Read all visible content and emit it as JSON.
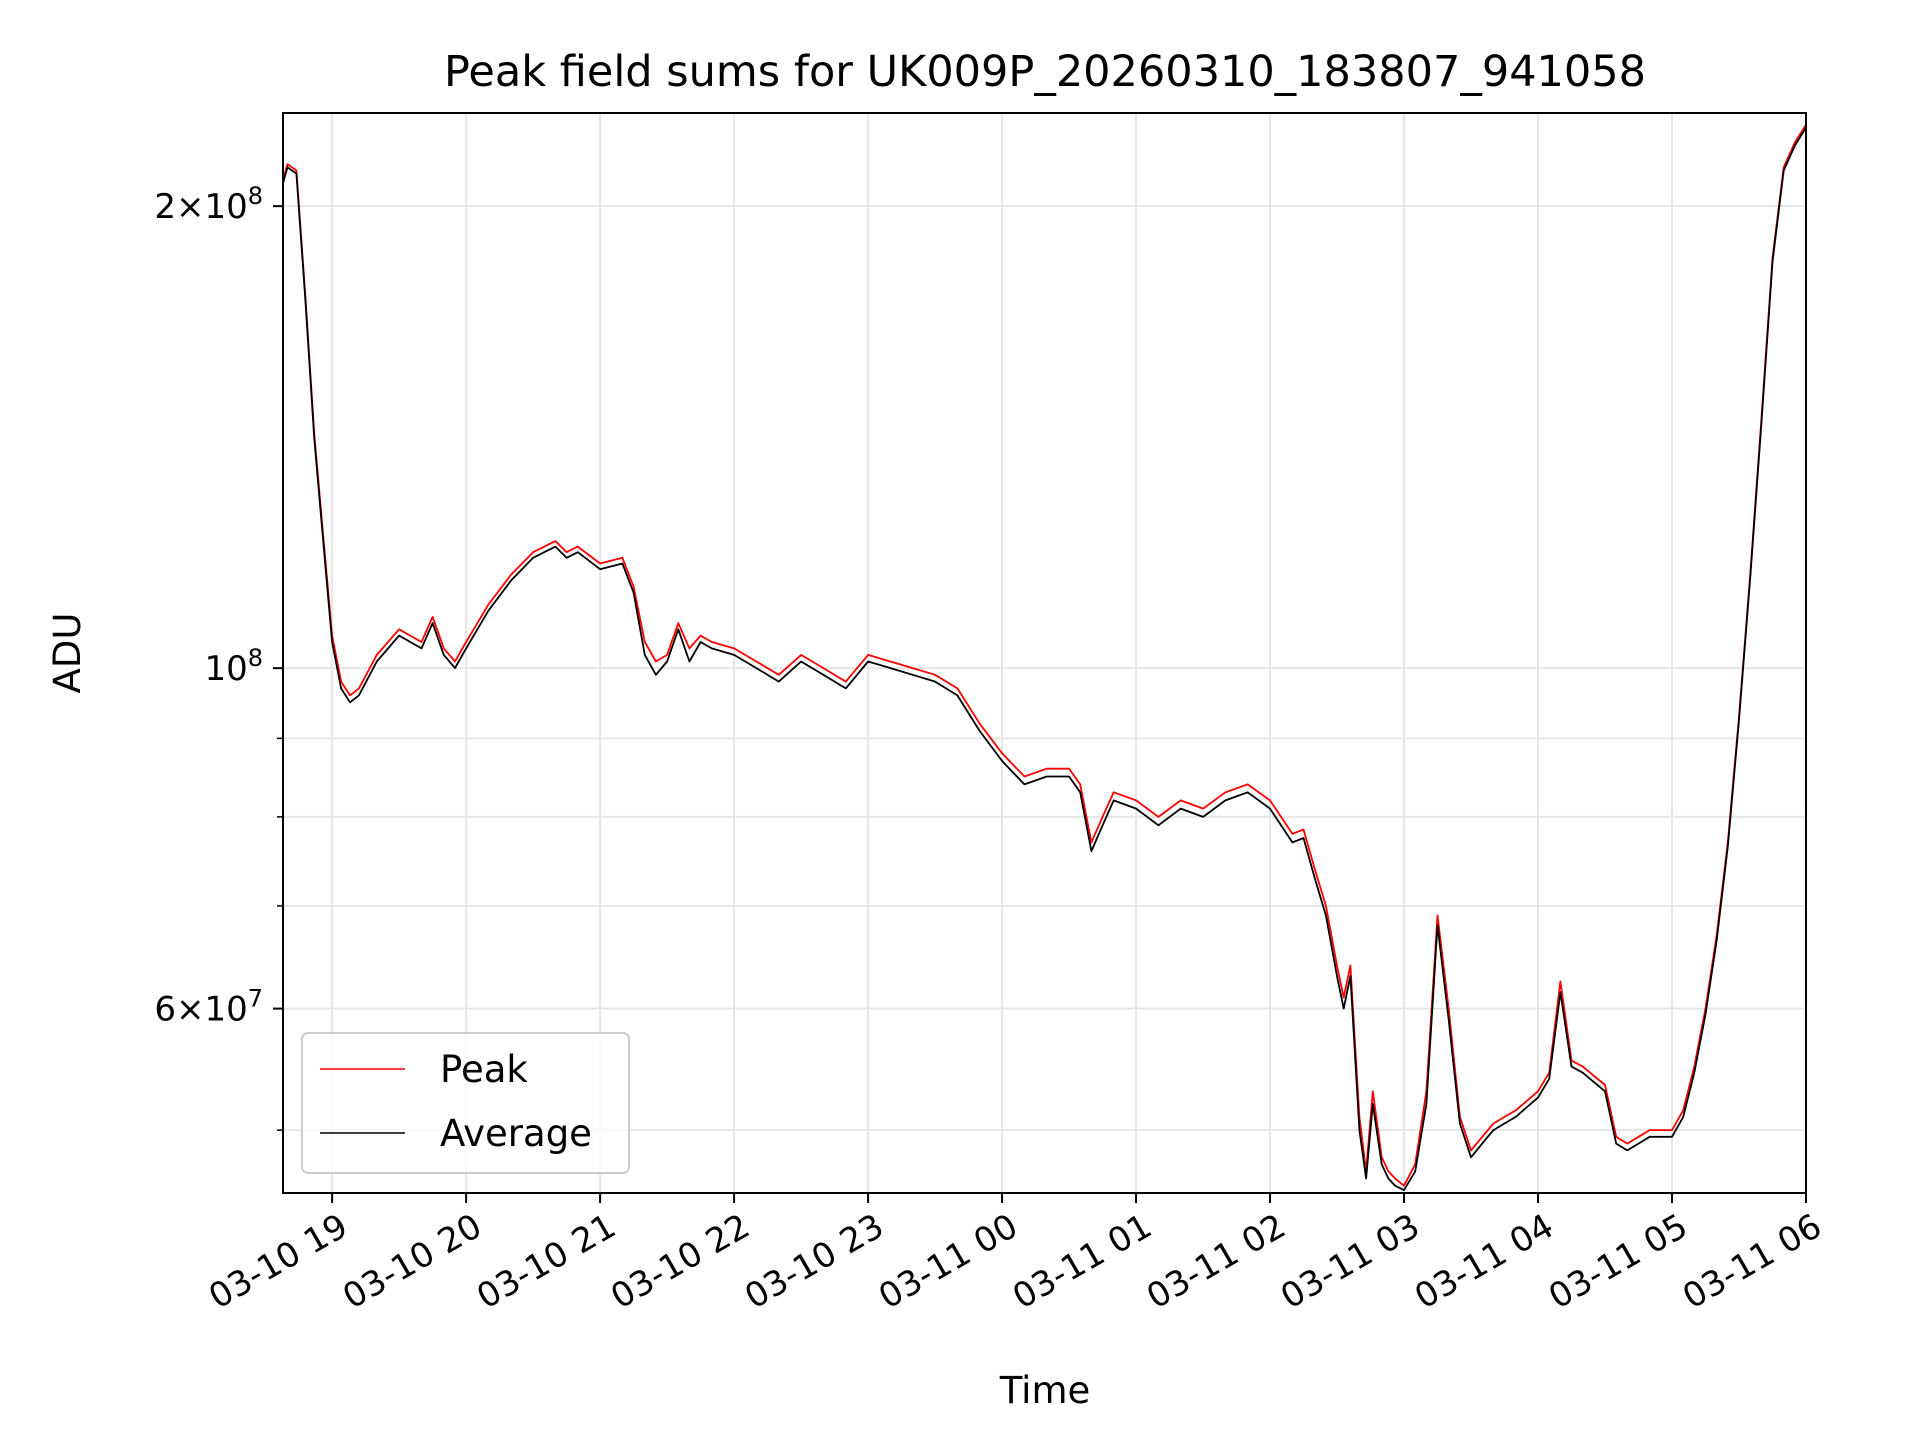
{
  "chart_data": {
    "type": "line",
    "title": "Peak field sums for UK009P_20260310_183807_941058",
    "xlabel": "Time",
    "ylabel": "ADU",
    "yscale": "log",
    "ylim": [
      45500000,
      230000000
    ],
    "xlim": [
      "2026-03-10 18:38",
      "2026-03-11 06:00"
    ],
    "grid": true,
    "legend_position": "lower-left",
    "x_tick_labels": [
      "03-10 19",
      "03-10 20",
      "03-10 21",
      "03-10 22",
      "03-10 23",
      "03-11 00",
      "03-11 01",
      "03-11 02",
      "03-11 03",
      "03-11 04",
      "03-11 05",
      "03-11 06"
    ],
    "x_tick_values": [
      "2026-03-10 19:00",
      "2026-03-10 20:00",
      "2026-03-10 21:00",
      "2026-03-10 22:00",
      "2026-03-10 23:00",
      "2026-03-11 00:00",
      "2026-03-11 01:00",
      "2026-03-11 02:00",
      "2026-03-11 03:00",
      "2026-03-11 04:00",
      "2026-03-11 05:00",
      "2026-03-11 06:00"
    ],
    "y_tick_labels": [
      {
        "value": 200000000,
        "mantissa": "2",
        "exponent": "8"
      },
      {
        "value": 100000000,
        "mantissa": "",
        "exponent": "8"
      },
      {
        "value": 60000000,
        "mantissa": "6",
        "exponent": "7"
      }
    ],
    "y_minor_ticks": [
      50000000,
      70000000,
      80000000,
      90000000
    ],
    "series": [
      {
        "name": "Peak",
        "color": "#ff0000",
        "x": [
          "2026-03-10 18:38",
          "2026-03-10 18:40",
          "2026-03-10 18:44",
          "2026-03-10 18:48",
          "2026-03-10 18:52",
          "2026-03-10 18:56",
          "2026-03-10 19:00",
          "2026-03-10 19:04",
          "2026-03-10 19:08",
          "2026-03-10 19:12",
          "2026-03-10 19:20",
          "2026-03-10 19:30",
          "2026-03-10 19:40",
          "2026-03-10 19:45",
          "2026-03-10 19:50",
          "2026-03-10 19:55",
          "2026-03-10 20:00",
          "2026-03-10 20:10",
          "2026-03-10 20:20",
          "2026-03-10 20:30",
          "2026-03-10 20:40",
          "2026-03-10 20:45",
          "2026-03-10 20:50",
          "2026-03-10 21:00",
          "2026-03-10 21:10",
          "2026-03-10 21:15",
          "2026-03-10 21:20",
          "2026-03-10 21:25",
          "2026-03-10 21:30",
          "2026-03-10 21:35",
          "2026-03-10 21:40",
          "2026-03-10 21:45",
          "2026-03-10 21:50",
          "2026-03-10 22:00",
          "2026-03-10 22:10",
          "2026-03-10 22:20",
          "2026-03-10 22:30",
          "2026-03-10 22:40",
          "2026-03-10 22:50",
          "2026-03-10 23:00",
          "2026-03-10 23:10",
          "2026-03-10 23:20",
          "2026-03-10 23:30",
          "2026-03-10 23:40",
          "2026-03-10 23:50",
          "2026-03-11 00:00",
          "2026-03-11 00:10",
          "2026-03-11 00:20",
          "2026-03-11 00:30",
          "2026-03-11 00:35",
          "2026-03-11 00:40",
          "2026-03-11 00:45",
          "2026-03-11 00:50",
          "2026-03-11 01:00",
          "2026-03-11 01:10",
          "2026-03-11 01:20",
          "2026-03-11 01:30",
          "2026-03-11 01:40",
          "2026-03-11 01:50",
          "2026-03-11 02:00",
          "2026-03-11 02:10",
          "2026-03-11 02:15",
          "2026-03-11 02:20",
          "2026-03-11 02:25",
          "2026-03-11 02:30",
          "2026-03-11 02:33",
          "2026-03-11 02:36",
          "2026-03-11 02:40",
          "2026-03-11 02:43",
          "2026-03-11 02:46",
          "2026-03-11 02:50",
          "2026-03-11 02:53",
          "2026-03-11 02:56",
          "2026-03-11 03:00",
          "2026-03-11 03:05",
          "2026-03-11 03:10",
          "2026-03-11 03:15",
          "2026-03-11 03:20",
          "2026-03-11 03:25",
          "2026-03-11 03:30",
          "2026-03-11 03:35",
          "2026-03-11 03:40",
          "2026-03-11 03:45",
          "2026-03-11 03:50",
          "2026-03-11 04:00",
          "2026-03-11 04:05",
          "2026-03-11 04:10",
          "2026-03-11 04:15",
          "2026-03-11 04:20",
          "2026-03-11 04:30",
          "2026-03-11 04:35",
          "2026-03-11 04:40",
          "2026-03-11 04:45",
          "2026-03-11 04:50",
          "2026-03-11 05:00",
          "2026-03-11 05:05",
          "2026-03-11 05:10",
          "2026-03-11 05:15",
          "2026-03-11 05:20",
          "2026-03-11 05:25",
          "2026-03-11 05:30",
          "2026-03-11 05:35",
          "2026-03-11 05:40",
          "2026-03-11 05:45",
          "2026-03-11 05:50",
          "2026-03-11 05:55",
          "2026-03-11 06:00"
        ],
        "y": [
          208000000,
          213000000,
          211000000,
          175000000,
          142000000,
          122000000,
          105000000,
          98000000,
          96000000,
          97000000,
          102000000,
          106000000,
          104000000,
          108000000,
          103000000,
          101000000,
          104000000,
          110000000,
          115000000,
          119000000,
          121000000,
          119000000,
          120000000,
          117000000,
          118000000,
          113000000,
          104000000,
          101000000,
          102000000,
          107000000,
          103000000,
          105000000,
          104000000,
          103000000,
          101000000,
          99000000,
          102000000,
          100000000,
          98000000,
          102000000,
          101000000,
          100000000,
          99000000,
          97000000,
          92000000,
          88000000,
          85000000,
          86000000,
          86000000,
          84000000,
          77000000,
          80000000,
          83000000,
          82000000,
          80000000,
          82000000,
          81000000,
          83000000,
          84000000,
          82000000,
          78000000,
          78500000,
          74000000,
          70000000,
          64000000,
          61000000,
          64000000,
          51000000,
          47000000,
          53000000,
          48000000,
          47000000,
          46500000,
          46000000,
          47500000,
          53000000,
          69000000,
          60000000,
          51000000,
          48500000,
          49500000,
          50500000,
          51000000,
          51500000,
          53000000,
          54500000,
          62500000,
          55500000,
          55000000,
          53500000,
          49500000,
          49000000,
          49500000,
          50000000,
          50000000,
          51500000,
          55000000,
          60000000,
          67000000,
          77000000,
          93000000,
          115000000,
          145000000,
          185000000,
          212000000,
          220000000,
          226000000
        ]
      },
      {
        "name": "Average",
        "color": "#000000",
        "x": [
          "2026-03-10 18:38",
          "2026-03-10 18:40",
          "2026-03-10 18:44",
          "2026-03-10 18:48",
          "2026-03-10 18:52",
          "2026-03-10 18:56",
          "2026-03-10 19:00",
          "2026-03-10 19:04",
          "2026-03-10 19:08",
          "2026-03-10 19:12",
          "2026-03-10 19:20",
          "2026-03-10 19:30",
          "2026-03-10 19:40",
          "2026-03-10 19:45",
          "2026-03-10 19:50",
          "2026-03-10 19:55",
          "2026-03-10 20:00",
          "2026-03-10 20:10",
          "2026-03-10 20:20",
          "2026-03-10 20:30",
          "2026-03-10 20:40",
          "2026-03-10 20:45",
          "2026-03-10 20:50",
          "2026-03-10 21:00",
          "2026-03-10 21:10",
          "2026-03-10 21:15",
          "2026-03-10 21:20",
          "2026-03-10 21:25",
          "2026-03-10 21:30",
          "2026-03-10 21:35",
          "2026-03-10 21:40",
          "2026-03-10 21:45",
          "2026-03-10 21:50",
          "2026-03-10 22:00",
          "2026-03-10 22:10",
          "2026-03-10 22:20",
          "2026-03-10 22:30",
          "2026-03-10 22:40",
          "2026-03-10 22:50",
          "2026-03-10 23:00",
          "2026-03-10 23:10",
          "2026-03-10 23:20",
          "2026-03-10 23:30",
          "2026-03-10 23:40",
          "2026-03-10 23:50",
          "2026-03-11 00:00",
          "2026-03-11 00:10",
          "2026-03-11 00:20",
          "2026-03-11 00:30",
          "2026-03-11 00:35",
          "2026-03-11 00:40",
          "2026-03-11 00:45",
          "2026-03-11 00:50",
          "2026-03-11 01:00",
          "2026-03-11 01:10",
          "2026-03-11 01:20",
          "2026-03-11 01:30",
          "2026-03-11 01:40",
          "2026-03-11 01:50",
          "2026-03-11 02:00",
          "2026-03-11 02:10",
          "2026-03-11 02:15",
          "2026-03-11 02:20",
          "2026-03-11 02:25",
          "2026-03-11 02:30",
          "2026-03-11 02:33",
          "2026-03-11 02:36",
          "2026-03-11 02:40",
          "2026-03-11 02:43",
          "2026-03-11 02:46",
          "2026-03-11 02:50",
          "2026-03-11 02:53",
          "2026-03-11 02:56",
          "2026-03-11 03:00",
          "2026-03-11 03:05",
          "2026-03-11 03:10",
          "2026-03-11 03:15",
          "2026-03-11 03:20",
          "2026-03-11 03:25",
          "2026-03-11 03:30",
          "2026-03-11 03:35",
          "2026-03-11 03:40",
          "2026-03-11 03:45",
          "2026-03-11 03:50",
          "2026-03-11 04:00",
          "2026-03-11 04:05",
          "2026-03-11 04:10",
          "2026-03-11 04:15",
          "2026-03-11 04:20",
          "2026-03-11 04:30",
          "2026-03-11 04:35",
          "2026-03-11 04:40",
          "2026-03-11 04:45",
          "2026-03-11 04:50",
          "2026-03-11 05:00",
          "2026-03-11 05:05",
          "2026-03-11 05:10",
          "2026-03-11 05:15",
          "2026-03-11 05:20",
          "2026-03-11 05:25",
          "2026-03-11 05:30",
          "2026-03-11 05:35",
          "2026-03-11 05:40",
          "2026-03-11 05:45",
          "2026-03-11 05:50",
          "2026-03-11 05:55",
          "2026-03-11 06:00"
        ],
        "y": [
          207000000,
          212000000,
          210000000,
          174000000,
          141000000,
          121000000,
          104000000,
          97000000,
          95000000,
          96000000,
          101000000,
          105000000,
          103000000,
          107000000,
          102000000,
          100000000,
          103000000,
          109000000,
          114000000,
          118000000,
          120000000,
          118000000,
          119000000,
          116000000,
          117000000,
          112000000,
          102000000,
          99000000,
          101000000,
          106000000,
          101000000,
          104000000,
          103000000,
          102000000,
          100000000,
          98000000,
          101000000,
          99000000,
          97000000,
          101000000,
          100000000,
          99000000,
          98000000,
          96000000,
          91000000,
          87000000,
          84000000,
          85000000,
          85000000,
          83000000,
          76000000,
          79000000,
          82000000,
          81000000,
          79000000,
          81000000,
          80000000,
          82000000,
          83000000,
          81000000,
          77000000,
          77500000,
          73000000,
          69000000,
          63000000,
          60000000,
          63000000,
          50000000,
          46500000,
          52000000,
          47500000,
          46500000,
          46000000,
          45700000,
          47000000,
          52000000,
          68000000,
          59000000,
          50500000,
          48000000,
          49000000,
          50000000,
          50500000,
          51000000,
          52500000,
          54000000,
          61500000,
          55000000,
          54500000,
          53000000,
          49000000,
          48500000,
          49000000,
          49500000,
          49500000,
          51000000,
          54500000,
          59500000,
          66500000,
          76500000,
          92500000,
          114500000,
          144000000,
          184000000,
          211000000,
          219000000,
          225000000
        ]
      }
    ]
  }
}
